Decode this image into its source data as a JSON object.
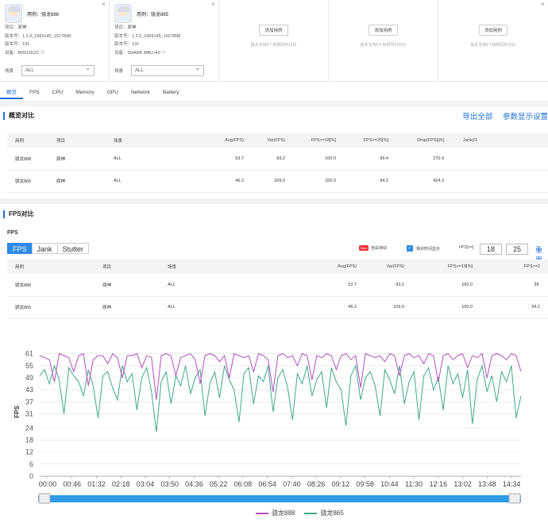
{
  "cards": [
    {
      "title": "用例：骁龙888",
      "rows": [
        [
          "项目：",
          "原神"
        ],
        [
          "版本号：",
          "1.2.0_1565145_1627898"
        ],
        [
          "版本号：",
          "131"
        ],
        [
          "设备：",
          "M2011K2C"
        ]
      ],
      "select_label": "场景",
      "select_value": "ALL"
    },
    {
      "title": "用例：骁龙865",
      "rows": [
        [
          "项目：",
          "原神"
        ],
        [
          "版本号：",
          "1.2.0_1565145_1627898"
        ],
        [
          "版本号：",
          "131"
        ],
        [
          "设备：",
          "SHARK MBU-A0"
        ]
      ],
      "select_label": "场景",
      "select_value": "ALL"
    },
    {
      "add": "添加用例",
      "hint": "最多支持6个用例同时对比"
    },
    {
      "add": "添加用例",
      "hint": "最多支持6个用例同时对比"
    },
    {
      "add": "添加用例",
      "hint": "最多支持6个用例同时对比"
    }
  ],
  "tabs": [
    "概览",
    "FPS",
    "CPU",
    "Memory",
    "GPU",
    "Network",
    "Battery"
  ],
  "overview": {
    "title": "概览对比",
    "export": "导出全部",
    "params": "参数显示设置",
    "headers": [
      "用例",
      "项目",
      "场景",
      "Avg(FPS)",
      "Var(FPS)",
      "FPS>=18[%]",
      "FPS>=25[%]",
      "Drop(FPS)[/h]",
      "Jank(/1"
    ],
    "rows": [
      [
        "骁龙888",
        "原神",
        "ALL",
        "53.7",
        "93.2",
        "100.0",
        "99.4",
        "270.9",
        ""
      ],
      [
        "骁龙865",
        "原神",
        "ALL",
        "46.2",
        "109.0",
        "100.0",
        "94.2",
        "424.3",
        ""
      ]
    ]
  },
  "fps_section": {
    "title": "FPS对比",
    "label": "FPS",
    "segments": [
      "FPS",
      "Jank",
      "Stutter"
    ],
    "new_badge": "New",
    "auto_label": "自由滑动",
    "realtime_label": "相对时间显示",
    "threshold_label": "FPS[>=]",
    "thresholds": [
      "18",
      "25"
    ],
    "reset": "重置",
    "headers": [
      "用例",
      "项目",
      "场景",
      "Avg(FPS)",
      "Var(FPS)",
      "FPS>=18[%]",
      "FPS>=2"
    ],
    "rows": [
      [
        "骁龙888",
        "原神",
        "ALL",
        "53.7",
        "93.2",
        "100.0",
        "99."
      ],
      [
        "骁龙865",
        "原神",
        "ALL",
        "46.2",
        "109.0",
        "100.0",
        "94.2"
      ]
    ]
  },
  "chart_data": {
    "type": "line",
    "ylabel": "FPS",
    "yticks": [
      0,
      6,
      12,
      18,
      24,
      31,
      37,
      43,
      49,
      55,
      61
    ],
    "ylim": [
      0,
      64
    ],
    "xticks": [
      "00:00",
      "00:46",
      "01:32",
      "02:18",
      "03:04",
      "03:50",
      "04:36",
      "05:22",
      "06:08",
      "06:54",
      "07:40",
      "08:26",
      "09:12",
      "09:58",
      "10:44",
      "11:30",
      "12:16",
      "13:02",
      "13:48",
      "14:34"
    ],
    "grid": true,
    "series": [
      {
        "name": "骁龙888",
        "color": "#b44fbf",
        "values": [
          60,
          59,
          58,
          47,
          61,
          60,
          59,
          52,
          60,
          61,
          45,
          58,
          60,
          60,
          56,
          61,
          59,
          49,
          60,
          60,
          61,
          54,
          60,
          59,
          38,
          60,
          61,
          60,
          50,
          59,
          60,
          61,
          58,
          46,
          60,
          61,
          60,
          57,
          60,
          49,
          61,
          60,
          59,
          60,
          52,
          61,
          60,
          58,
          42,
          60,
          61,
          59,
          60,
          55,
          61,
          60,
          48,
          60,
          59,
          61,
          60,
          53,
          60,
          61,
          58,
          60,
          44,
          61,
          60,
          59,
          60,
          57,
          61,
          60,
          50,
          60,
          61,
          59,
          60,
          56,
          61,
          60,
          47,
          60,
          61,
          58,
          60,
          61,
          54,
          60,
          59,
          61,
          49,
          60,
          61,
          60,
          58,
          61,
          60,
          52
        ]
      },
      {
        "name": "骁龙865",
        "color": "#3fa88a",
        "values": [
          50,
          53,
          46,
          55,
          48,
          31,
          54,
          50,
          47,
          40,
          53,
          45,
          29,
          50,
          52,
          44,
          38,
          55,
          47,
          51,
          33,
          49,
          54,
          42,
          22,
          47,
          52,
          36,
          50,
          45,
          55,
          41,
          49,
          53,
          30,
          46,
          52,
          39,
          55,
          48,
          43,
          27,
          51,
          54,
          36,
          50,
          47,
          55,
          32,
          49,
          53,
          44,
          28,
          51,
          46,
          55,
          40,
          48,
          52,
          34,
          54,
          47,
          43,
          25,
          50,
          55,
          38,
          49,
          52,
          45,
          30,
          53,
          48,
          41,
          55,
          36,
          47,
          52,
          28,
          50,
          54,
          43,
          49,
          33,
          55,
          46,
          51,
          39,
          53,
          26,
          48,
          55,
          42,
          50,
          37,
          52,
          47,
          55,
          29,
          40
        ]
      }
    ]
  },
  "legend": [
    "骁龙888",
    "骁龙865"
  ]
}
